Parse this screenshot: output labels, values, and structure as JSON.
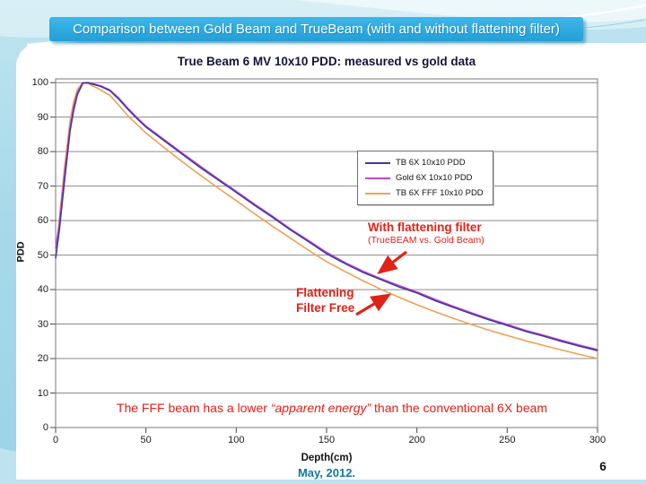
{
  "slide": {
    "title": "Comparison between Gold Beam and TrueBeam (with and without flattening filter)",
    "date": "May, 2012.",
    "page_number": "6",
    "accent_color": "#2bace2"
  },
  "chart_data": {
    "type": "line",
    "title": "True Beam 6 MV 10x10 PDD: measured vs gold data",
    "xlabel": "Depth(cm)",
    "ylabel": "PDD",
    "xlim": [
      0,
      300
    ],
    "ylim": [
      0,
      100
    ],
    "x_ticks": [
      0,
      50,
      100,
      150,
      200,
      250,
      300
    ],
    "y_ticks": [
      0,
      10,
      20,
      30,
      40,
      50,
      60,
      70,
      80,
      90,
      100
    ],
    "grid": "horizontal",
    "legend_position": "inside-upper-right",
    "x": [
      0,
      2,
      5,
      8,
      10,
      12,
      15,
      18,
      20,
      25,
      30,
      35,
      40,
      45,
      50,
      60,
      70,
      80,
      90,
      100,
      110,
      120,
      130,
      140,
      150,
      160,
      170,
      180,
      190,
      200,
      210,
      220,
      230,
      240,
      250,
      260,
      270,
      280,
      290,
      300
    ],
    "series": [
      {
        "name": "TB 6X 10x10 PDD",
        "color": "#3c3c9e",
        "y": [
          49,
          57,
          72,
          86,
          92,
          96.5,
          99.8,
          100,
          99.6,
          98.9,
          97.7,
          95.2,
          92.3,
          89.6,
          87.1,
          83.2,
          79.3,
          75.4,
          71.8,
          68.2,
          64.5,
          61.0,
          57.3,
          53.9,
          50.4,
          47.6,
          45.0,
          42.9,
          40.8,
          39.0,
          36.8,
          34.9,
          33.0,
          31.2,
          29.6,
          27.9,
          26.5,
          25.0,
          23.6,
          22.3
        ]
      },
      {
        "name": "Gold 6X 10x10 PDD",
        "color": "#cc44cc",
        "y": [
          52,
          59,
          74,
          87,
          93,
          97,
          100,
          100,
          99.8,
          99.1,
          97.9,
          95.5,
          92.6,
          89.9,
          87.4,
          83.5,
          79.6,
          75.8,
          72.1,
          68.5,
          64.8,
          61.3,
          57.6,
          54.2,
          50.8,
          47.9,
          45.4,
          43.2,
          41.2,
          39.3,
          37.2,
          35.2,
          33.3,
          31.5,
          29.9,
          28.2,
          26.8,
          25.3,
          23.9,
          22.6
        ]
      },
      {
        "name": "TB 6X FFF 10x10 PDD",
        "color": "#f0a058",
        "y": [
          50,
          60,
          76,
          89,
          94.5,
          98,
          100,
          99.7,
          99.2,
          97.9,
          96.3,
          93.4,
          90.4,
          87.9,
          85.4,
          81.2,
          77.1,
          73.2,
          69.4,
          65.8,
          62.0,
          58.4,
          54.9,
          51.4,
          48.1,
          45.3,
          42.6,
          40.1,
          37.8,
          35.6,
          33.6,
          31.7,
          29.9,
          28.2,
          26.7,
          25.2,
          23.8,
          22.5,
          21.2,
          20.0
        ]
      }
    ]
  },
  "annotations": {
    "with_ff": {
      "line1": "With flattening filter",
      "line2": "(TrueBEAM vs. Gold Beam)"
    },
    "fff": {
      "line1": "Flattening",
      "line2": "Filter Free"
    },
    "conclusion": {
      "prefix": "The FFF beam has a lower ",
      "italic": "“apparent energy”",
      "suffix": " than the conventional 6X beam"
    }
  }
}
